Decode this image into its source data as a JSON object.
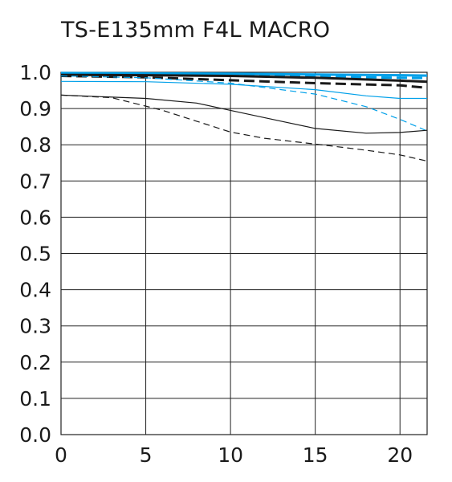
{
  "chart_data": {
    "type": "line",
    "title": "TS-E135mm F4L MACRO",
    "xlabel": "",
    "ylabel": "",
    "xlim": [
      0,
      21.6
    ],
    "ylim": [
      0,
      1.0
    ],
    "x_ticks": [
      0,
      5,
      10,
      15,
      20
    ],
    "x_tick_labels": [
      "0",
      "5",
      "10",
      "15",
      "20"
    ],
    "y_ticks": [
      0.0,
      0.1,
      0.2,
      0.3,
      0.4,
      0.5,
      0.6,
      0.7,
      0.8,
      0.9,
      1.0
    ],
    "y_tick_labels": [
      "0.0",
      "0.1",
      "0.2",
      "0.3",
      "0.4",
      "0.5",
      "0.6",
      "0.7",
      "0.8",
      "0.9",
      "1.0"
    ],
    "grid": true,
    "legend": "none",
    "series": [
      {
        "color": "#00a0e9",
        "width": 3,
        "dash": false,
        "points": [
          [
            0,
            0.998
          ],
          [
            5,
            0.997
          ],
          [
            10,
            0.996
          ],
          [
            15,
            0.994
          ],
          [
            20,
            0.992
          ],
          [
            21.6,
            0.991
          ]
        ]
      },
      {
        "color": "#00a0e9",
        "width": 3,
        "dash": true,
        "points": [
          [
            0,
            0.995
          ],
          [
            5,
            0.994
          ],
          [
            10,
            0.992
          ],
          [
            15,
            0.988
          ],
          [
            20,
            0.985
          ],
          [
            21.6,
            0.984
          ]
        ]
      },
      {
        "color": "#1a1a1a",
        "width": 3,
        "dash": false,
        "points": [
          [
            0,
            0.993
          ],
          [
            5,
            0.992
          ],
          [
            10,
            0.99
          ],
          [
            15,
            0.985
          ],
          [
            20,
            0.977
          ],
          [
            21.6,
            0.974
          ]
        ]
      },
      {
        "color": "#1a1a1a",
        "width": 3,
        "dash": true,
        "points": [
          [
            0,
            0.99
          ],
          [
            5,
            0.986
          ],
          [
            10,
            0.978
          ],
          [
            15,
            0.97
          ],
          [
            20,
            0.964
          ],
          [
            21.6,
            0.957
          ]
        ]
      },
      {
        "color": "#00a0e9",
        "width": 1.2,
        "dash": false,
        "points": [
          [
            0,
            0.975
          ],
          [
            5,
            0.974
          ],
          [
            10,
            0.967
          ],
          [
            15,
            0.952
          ],
          [
            18,
            0.935
          ],
          [
            20,
            0.928
          ],
          [
            21.6,
            0.928
          ]
        ]
      },
      {
        "color": "#00a0e9",
        "width": 1.2,
        "dash": true,
        "points": [
          [
            0,
            0.99
          ],
          [
            5,
            0.985
          ],
          [
            10,
            0.97
          ],
          [
            15,
            0.94
          ],
          [
            18,
            0.905
          ],
          [
            20,
            0.87
          ],
          [
            21.6,
            0.838
          ]
        ]
      },
      {
        "color": "#1a1a1a",
        "width": 1.2,
        "dash": false,
        "points": [
          [
            0,
            0.937
          ],
          [
            5,
            0.928
          ],
          [
            8,
            0.915
          ],
          [
            10,
            0.895
          ],
          [
            13,
            0.865
          ],
          [
            15,
            0.845
          ],
          [
            18,
            0.832
          ],
          [
            20,
            0.834
          ],
          [
            21.6,
            0.84
          ]
        ]
      },
      {
        "color": "#1a1a1a",
        "width": 1.2,
        "dash": true,
        "points": [
          [
            0,
            0.937
          ],
          [
            3,
            0.93
          ],
          [
            6,
            0.895
          ],
          [
            8,
            0.865
          ],
          [
            10,
            0.835
          ],
          [
            12,
            0.818
          ],
          [
            15,
            0.802
          ],
          [
            18,
            0.785
          ],
          [
            20,
            0.772
          ],
          [
            21.6,
            0.755
          ]
        ]
      }
    ]
  }
}
